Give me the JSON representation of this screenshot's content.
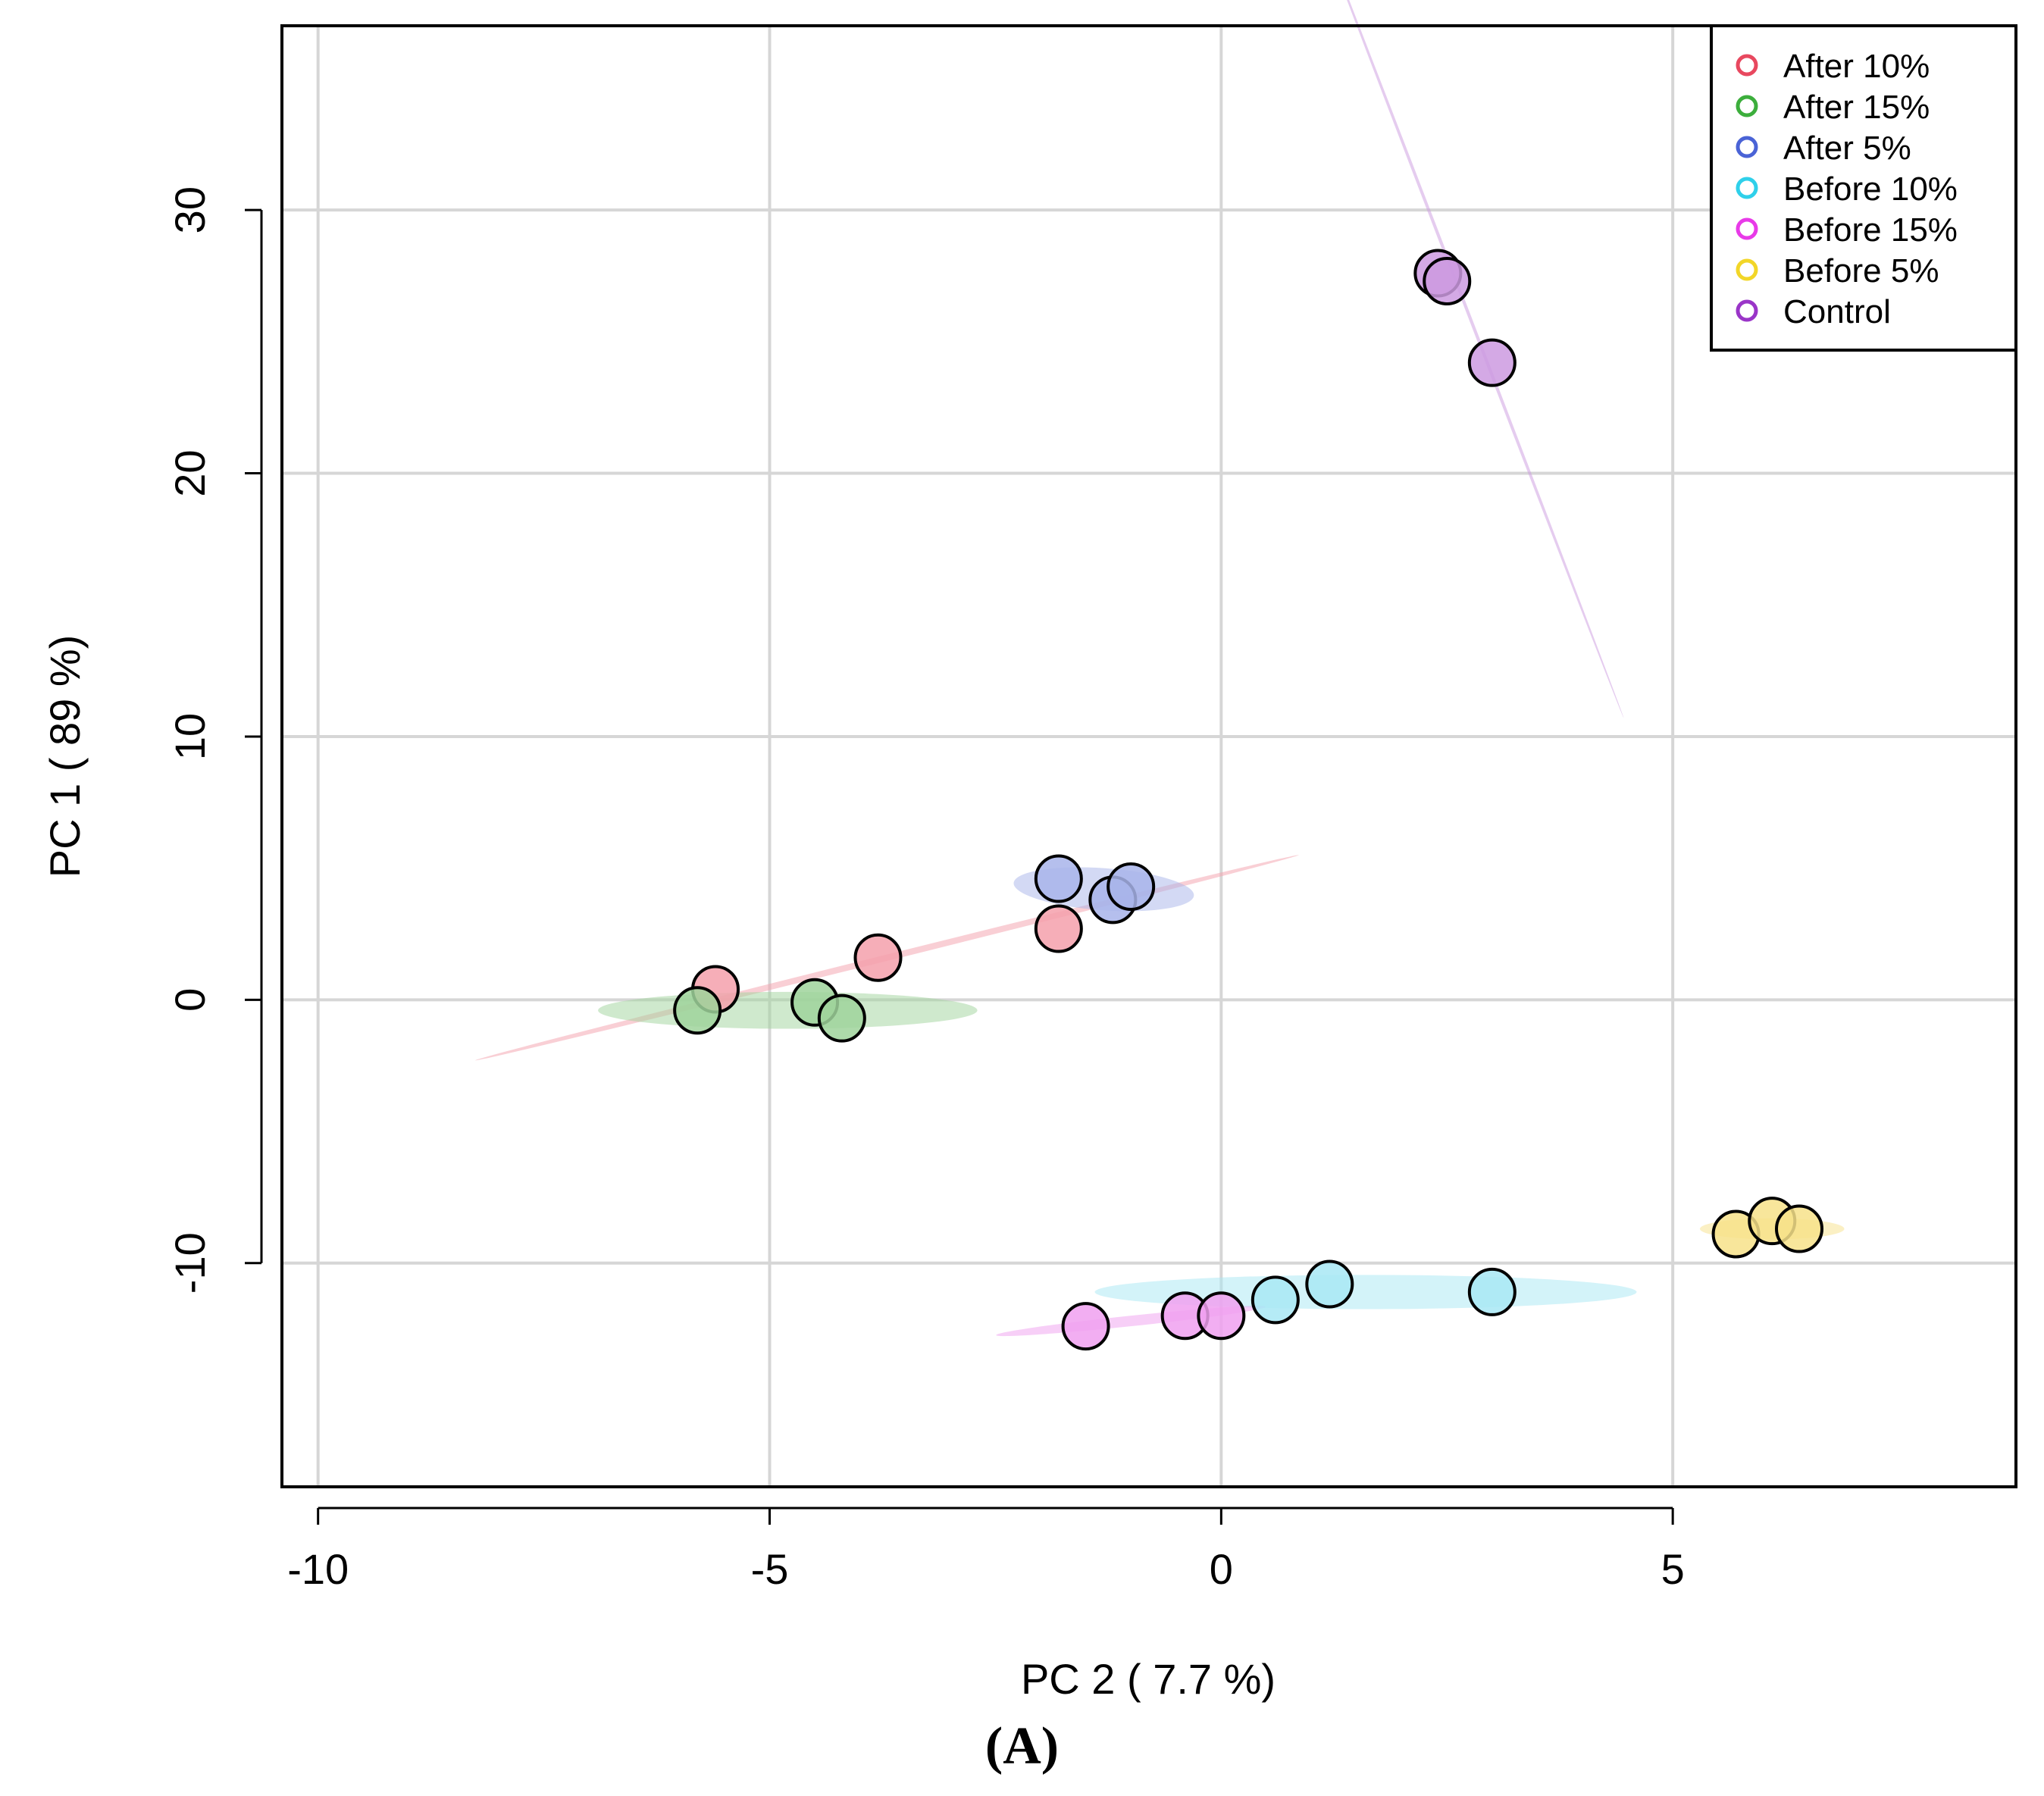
{
  "caption": "(A)",
  "chart_data": {
    "type": "scatter",
    "title": "",
    "xlabel": "PC 2 ( 7.7 %)",
    "ylabel": "PC 1 ( 89 %)",
    "xlim": [
      -10.4,
      8.8
    ],
    "ylim": [
      -18.5,
      37
    ],
    "xticks": [
      -10,
      -5,
      0,
      5
    ],
    "xtick_labels": [
      "-10",
      "-5",
      "0",
      "5"
    ],
    "yticks": [
      -10,
      0,
      10,
      20,
      30
    ],
    "ytick_labels": [
      "-10",
      "0",
      "10",
      "20",
      "30"
    ],
    "grid": true,
    "legend_position": "top-right",
    "series": [
      {
        "name": "After 10%",
        "color": "#e8485f",
        "fill": "#f4a0ac",
        "points": [
          [
            -5.6,
            0.4
          ],
          [
            -3.8,
            1.6
          ],
          [
            -1.8,
            2.7
          ]
        ],
        "ellipse": {
          "cx": -3.7,
          "cy": 1.6,
          "rx": 4.7,
          "ry": 0.12,
          "angle_deg": 14
        }
      },
      {
        "name": "After 15%",
        "color": "#3cae3c",
        "fill": "#9fd49b",
        "points": [
          [
            -5.8,
            -0.4
          ],
          [
            -4.5,
            -0.1
          ],
          [
            -4.2,
            -0.7
          ]
        ],
        "ellipse": {
          "cx": -4.8,
          "cy": -0.4,
          "rx": 2.1,
          "ry": 0.7,
          "angle_deg": 0
        }
      },
      {
        "name": "After 5%",
        "color": "#4a63d6",
        "fill": "#a8b4ea",
        "points": [
          [
            -1.8,
            4.6
          ],
          [
            -1.2,
            3.8
          ],
          [
            -1.0,
            4.3
          ]
        ],
        "ellipse": {
          "cx": -1.3,
          "cy": 4.2,
          "rx": 1.0,
          "ry": 0.8,
          "angle_deg": -4
        }
      },
      {
        "name": "Before 10%",
        "color": "#2fd0ea",
        "fill": "#a8e8f4",
        "points": [
          [
            0.6,
            -11.4
          ],
          [
            1.2,
            -10.8
          ],
          [
            3.0,
            -11.1
          ]
        ],
        "ellipse": {
          "cx": 1.6,
          "cy": -11.1,
          "rx": 3.0,
          "ry": 0.65,
          "angle_deg": 0
        }
      },
      {
        "name": "Before 15%",
        "color": "#e83ae8",
        "fill": "#f0a0f0",
        "points": [
          [
            -1.5,
            -12.4
          ],
          [
            -0.4,
            -12.0
          ],
          [
            0.0,
            -12.0
          ]
        ],
        "ellipse": {
          "cx": -1.0,
          "cy": -12.2,
          "rx": 1.5,
          "ry": 0.2,
          "angle_deg": 6
        }
      },
      {
        "name": "Before 5%",
        "color": "#f2d628",
        "fill": "#f7e28a",
        "points": [
          [
            5.7,
            -8.9
          ],
          [
            6.1,
            -8.4
          ],
          [
            6.4,
            -8.7
          ]
        ],
        "ellipse": {
          "cx": 6.1,
          "cy": -8.7,
          "rx": 0.8,
          "ry": 0.4,
          "angle_deg": 0
        }
      },
      {
        "name": "Control",
        "color": "#9a35c8",
        "fill": "#cc9ae0",
        "points": [
          [
            2.4,
            27.6
          ],
          [
            2.5,
            27.3
          ],
          [
            3.0,
            24.2
          ]
        ],
        "ellipse": {
          "cx": 2.7,
          "cy": 26.4,
          "rx": 4.9,
          "ry": 0.06,
          "angle_deg": -69
        }
      }
    ]
  }
}
